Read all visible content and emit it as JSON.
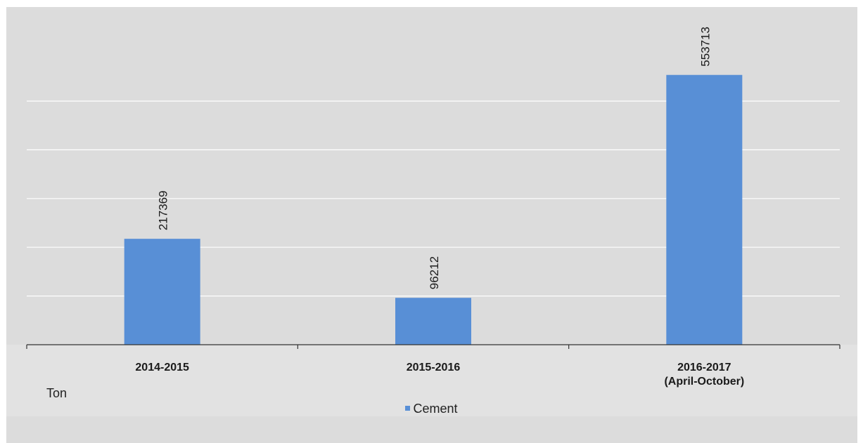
{
  "chart_data": {
    "type": "bar",
    "categories": [
      "2014-2015",
      "2015-2016",
      "2016-2017\n(April-October)"
    ],
    "series": [
      {
        "name": "Cement",
        "values": [
          217369,
          96212,
          553713
        ],
        "color": "#588fd6"
      }
    ],
    "data_labels": [
      "217369",
      "96212",
      "553713"
    ],
    "ylabel": "Ton",
    "ylim": [
      0,
      600000
    ],
    "y_tick_step": 100000,
    "y_tick_labels_visible": false,
    "grid": true,
    "legend": "bottom-center"
  },
  "colors": {
    "background": "#dcdcdc",
    "gridline": "#ffffff",
    "axis": "#333333",
    "bar": "#588fd6"
  },
  "legend": {
    "label": "Cement"
  },
  "unit_label": "Ton"
}
